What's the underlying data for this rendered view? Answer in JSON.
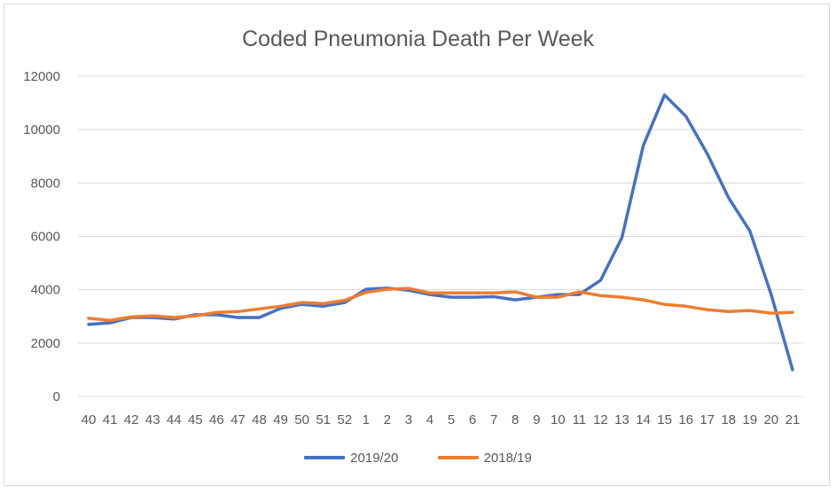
{
  "chart_data": {
    "type": "line",
    "title": "Coded Pneumonia Death Per Week",
    "xlabel": "",
    "ylabel": "",
    "ylim": [
      0,
      12000
    ],
    "yticks": [
      0,
      2000,
      4000,
      6000,
      8000,
      10000,
      12000
    ],
    "grid": true,
    "legend_position": "bottom",
    "categories": [
      "40",
      "41",
      "42",
      "43",
      "44",
      "45",
      "46",
      "47",
      "48",
      "49",
      "50",
      "51",
      "52",
      "1",
      "2",
      "3",
      "4",
      "5",
      "6",
      "7",
      "8",
      "9",
      "10",
      "11",
      "12",
      "13",
      "14",
      "15",
      "16",
      "17",
      "18",
      "19",
      "20",
      "21"
    ],
    "series": [
      {
        "name": "2019/20",
        "color": "#4472c4",
        "values": [
          2700,
          2760,
          2960,
          2960,
          2900,
          3060,
          3060,
          2960,
          2960,
          3300,
          3450,
          3380,
          3520,
          4020,
          4060,
          3980,
          3820,
          3720,
          3720,
          3740,
          3620,
          3720,
          3820,
          3820,
          4350,
          5950,
          9400,
          11300,
          10500,
          9100,
          7450,
          6200,
          3820,
          1000
        ]
      },
      {
        "name": "2018/19",
        "color": "#ed7d31",
        "values": [
          2930,
          2850,
          2980,
          3020,
          2960,
          3020,
          3150,
          3180,
          3280,
          3380,
          3520,
          3480,
          3600,
          3900,
          4020,
          4050,
          3880,
          3880,
          3880,
          3880,
          3920,
          3720,
          3720,
          3920,
          3780,
          3720,
          3620,
          3450,
          3380,
          3250,
          3180,
          3220,
          3120,
          3150
        ]
      }
    ]
  }
}
